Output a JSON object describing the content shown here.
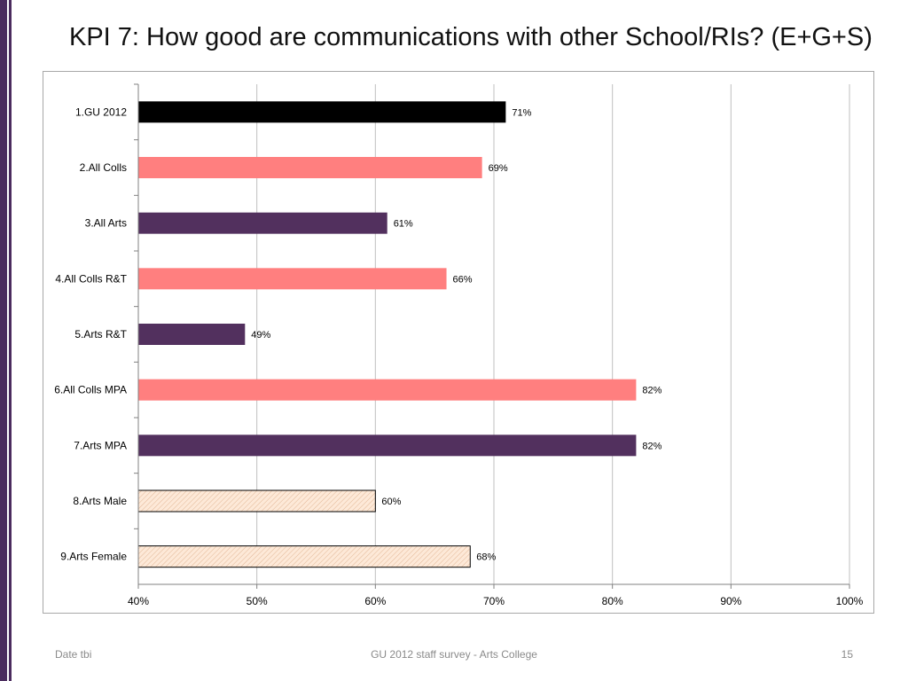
{
  "title": "KPI 7: How good are communications with other School/RIs? (E+G+S)",
  "footer": {
    "left": "Date tbi",
    "center": "GU 2012 staff survey -  Arts College",
    "right": "15"
  },
  "colors": {
    "black": "#000000",
    "pink": "#ff7f7f",
    "purple": "#52305e",
    "hatch": "#fde9d8",
    "side_bar": "#4b2c5e"
  },
  "chart_data": {
    "type": "bar",
    "orientation": "horizontal",
    "title": "",
    "xlabel": "",
    "ylabel": "",
    "xlim": [
      40,
      100
    ],
    "x_ticks": [
      40,
      50,
      60,
      70,
      80,
      90,
      100
    ],
    "x_tick_labels": [
      "40%",
      "50%",
      "60%",
      "70%",
      "80%",
      "90%",
      "100%"
    ],
    "grid": true,
    "legend": "none",
    "categories": [
      "1.GU 2012",
      "2.All Colls",
      "3.All Arts",
      "4.All Colls R&T",
      "5.Arts R&T",
      "6.All Colls MPA",
      "7.Arts MPA",
      "8.Arts Male",
      "9.Arts Female"
    ],
    "values": [
      71,
      69,
      61,
      66,
      49,
      82,
      82,
      60,
      68
    ],
    "data_labels": [
      "71%",
      "69%",
      "61%",
      "66%",
      "49%",
      "82%",
      "82%",
      "60%",
      "68%"
    ],
    "bar_styles": [
      "black",
      "pink",
      "purple",
      "pink",
      "purple",
      "pink",
      "purple",
      "hatch",
      "hatch"
    ]
  }
}
